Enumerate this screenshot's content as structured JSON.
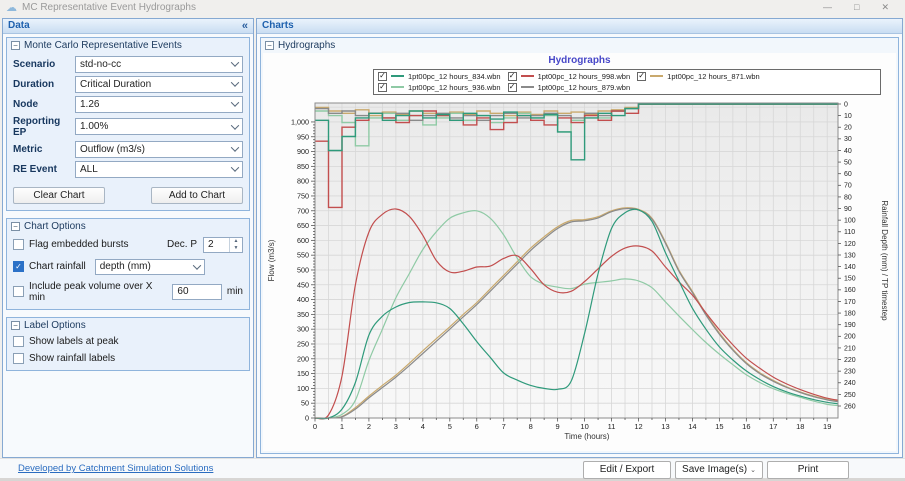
{
  "window": {
    "title": "MC Representative Event Hydrographs",
    "controls": {
      "minimize": "—",
      "maximize": "□",
      "close": "✕"
    },
    "app_icon": "☁"
  },
  "left_panel": {
    "header": "Data",
    "collapse_glyph": "«",
    "mc_group": {
      "title": "Monte Carlo Representative Events",
      "fields": [
        {
          "label": "Scenario",
          "value": "std-no-cc"
        },
        {
          "label": "Duration",
          "value": "Critical Duration"
        },
        {
          "label": "Node",
          "value": "1.26"
        },
        {
          "label": "Reporting EP",
          "value": "1.00%"
        },
        {
          "label": "Metric",
          "value": "Outflow (m3/s)"
        },
        {
          "label": "RE Event",
          "value": "ALL"
        }
      ],
      "clear_button": "Clear Chart",
      "add_button": "Add to Chart"
    },
    "chart_options": {
      "title": "Chart Options",
      "flag_bursts": {
        "label": "Flag embedded bursts",
        "checked": false
      },
      "dec_p": {
        "label": "Dec. P",
        "value": "2"
      },
      "chart_rainfall": {
        "label": "Chart rainfall",
        "checked": true,
        "value": "depth (mm)"
      },
      "peak_volume": {
        "label": "Include peak volume over X min",
        "checked": false,
        "value": "60",
        "suffix": "min"
      }
    },
    "label_options": {
      "title": "Label Options",
      "labels_at_peak": {
        "label": "Show labels at peak",
        "checked": false
      },
      "rainfall_labels": {
        "label": "Show rainfall labels",
        "checked": false
      }
    }
  },
  "right_panel": {
    "header": "Charts",
    "group_title": "Hydrographs"
  },
  "footer": {
    "link": "Developed by Catchment Simulation Solutions",
    "edit_button": "Edit / Export",
    "save_button": "Save Image(s)",
    "save_dd": "⌄",
    "print_button": "Print"
  },
  "chart_data": {
    "type": "line",
    "title": "Hydrographs",
    "axes": {
      "x": {
        "min": 0,
        "max": 19.4,
        "tick_step": 1,
        "tick_max": 19,
        "label": "Time (hours)"
      },
      "flow": {
        "min": 0,
        "max": 1064,
        "tick_step": 50,
        "tick_max": 1000,
        "label": "Flow (m3/s)"
      },
      "rain": {
        "min": 0,
        "max": 260,
        "tick_step": 10,
        "tick_max": 260,
        "label": "Rainfall Depth (mm) / TP timestep",
        "inverted": true
      }
    },
    "x_step": 0.5,
    "rain_step": 0.5,
    "rain_end": 12,
    "grid": {
      "x_minor_step": 0.5,
      "flow_step": 50
    },
    "legend_position": "top",
    "series": [
      {
        "name": "1pt00pc_12 hours_834.wbn",
        "color": "#2f9a7b",
        "checked": true,
        "flow": [
          0,
          0,
          30,
          120,
          280,
          344,
          375,
          390,
          392,
          389,
          370,
          318,
          258,
          205,
          152,
          128,
          110,
          100,
          97,
          124,
          286,
          488,
          640,
          693,
          703,
          664,
          558,
          463,
          371,
          300,
          240,
          196,
          159,
          130,
          106,
          88,
          74,
          62,
          53,
          48
        ],
        "rain": [
          14,
          40,
          28,
          12,
          8,
          14,
          10,
          6,
          12,
          9,
          14,
          8,
          10,
          13,
          7,
          10,
          12,
          9,
          24,
          48,
          12,
          8,
          10,
          4
        ]
      },
      {
        "name": "1pt00pc_12 hours_998.wbn",
        "color": "#c24e4e",
        "checked": true,
        "flow": [
          0,
          10,
          142,
          450,
          628,
          688,
          706,
          681,
          617,
          532,
          493,
          496,
          510,
          513,
          539,
          548,
          504,
          450,
          425,
          428,
          461,
          504,
          546,
          574,
          581,
          564,
          510,
          460,
          415,
          355,
          298,
          247,
          202,
          168,
          138,
          115,
          96,
          80,
          67,
          60
        ],
        "rain": [
          32,
          89,
          20,
          14,
          8,
          12,
          16,
          10,
          6,
          10,
          14,
          18,
          12,
          22,
          16,
          10,
          14,
          18,
          12,
          16,
          10,
          14,
          6,
          8
        ]
      },
      {
        "name": "1pt00pc_12 hours_871.wbn",
        "color": "#c9a96d",
        "checked": true,
        "flow": [
          0,
          0,
          5,
          35,
          74,
          110,
          145,
          185,
          227,
          268,
          308,
          350,
          390,
          436,
          482,
          528,
          574,
          612,
          646,
          667,
          670,
          680,
          700,
          710,
          705,
          675,
          594,
          500,
          428,
          352,
          287,
          232,
          187,
          153,
          127,
          105,
          88,
          74,
          63,
          57
        ],
        "rain": [
          3,
          6,
          8,
          5,
          10,
          7,
          9,
          6,
          8,
          10,
          7,
          9,
          6,
          8,
          10,
          7,
          9,
          6,
          8,
          7,
          9,
          6,
          5,
          3
        ]
      },
      {
        "name": "1pt00pc_12 hours_936.wbn",
        "color": "#8fcaa5",
        "checked": true,
        "flow": [
          0,
          0,
          12,
          60,
          194,
          300,
          406,
          488,
          569,
          629,
          675,
          693,
          700,
          675,
          618,
          540,
          477,
          452,
          442,
          437,
          452,
          458,
          463,
          470,
          463,
          440,
          392,
          345,
          299,
          255,
          216,
          180,
          146,
          120,
          99,
          83,
          70,
          57,
          46,
          42
        ],
        "rain": [
          6,
          10,
          16,
          36,
          12,
          8,
          14,
          10,
          18,
          12,
          8,
          14,
          10,
          16,
          12,
          8,
          12,
          10,
          24,
          14,
          8,
          12,
          6,
          4
        ]
      },
      {
        "name": "1pt00pc_12 hours_879.wbn",
        "color": "#8a8a8a",
        "checked": true,
        "flow": [
          0,
          0,
          4,
          30,
          68,
          103,
          138,
          177,
          218,
          259,
          300,
          342,
          383,
          428,
          474,
          520,
          566,
          605,
          640,
          662,
          666,
          676,
          697,
          707,
          703,
          672,
          590,
          496,
          424,
          348,
          283,
          229,
          184,
          150,
          124,
          103,
          86,
          72,
          61,
          55
        ],
        "rain": [
          4,
          8,
          6,
          10,
          8,
          12,
          8,
          14,
          10,
          8,
          12,
          10,
          14,
          10,
          8,
          12,
          10,
          8,
          10,
          12,
          8,
          10,
          6,
          4
        ]
      }
    ]
  }
}
